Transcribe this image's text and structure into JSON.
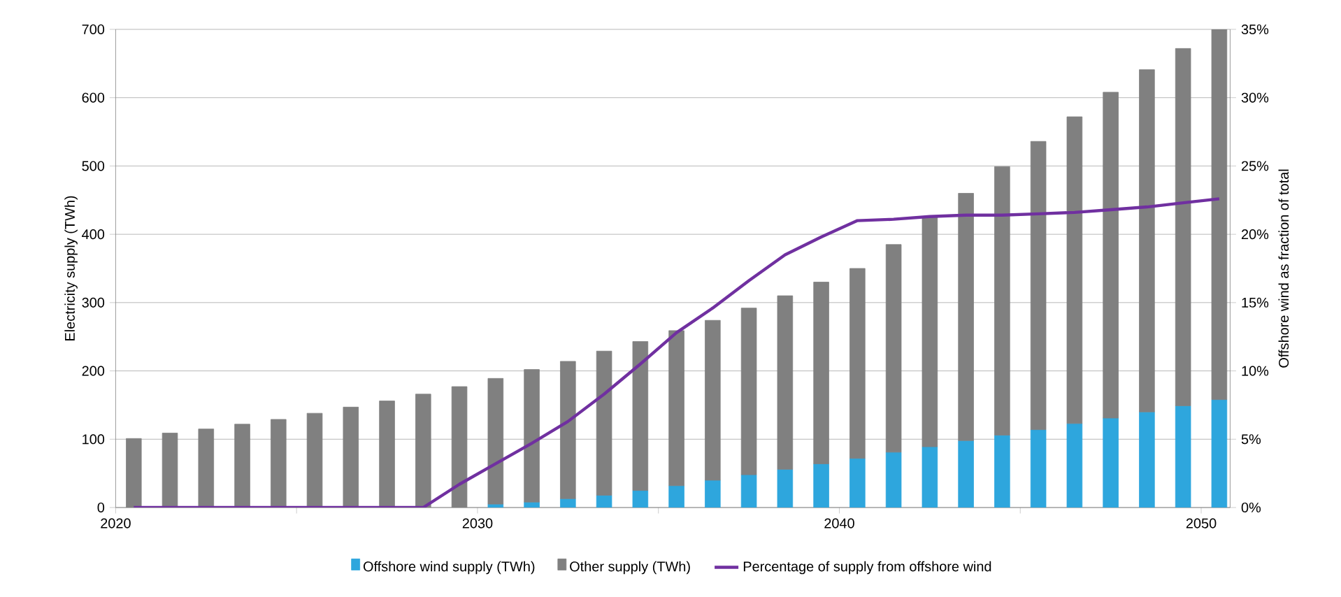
{
  "chart_data": {
    "type": "bar",
    "stacked": true,
    "x": [
      2020.5,
      2021.5,
      2022.5,
      2023.5,
      2024.5,
      2025.5,
      2026.5,
      2027.5,
      2028.5,
      2029.5,
      2030.5,
      2031.5,
      2032.5,
      2033.5,
      2034.5,
      2035.5,
      2036.5,
      2037.5,
      2038.5,
      2039.5,
      2040.5,
      2041.5,
      2042.5,
      2043.5,
      2044.5,
      2045.5,
      2046.5,
      2047.5,
      2048.5,
      2049.5,
      2050.5
    ],
    "series": [
      {
        "name": "Offshore wind supply (TWh)",
        "color": "#2ea6dd",
        "values": [
          0,
          0,
          0,
          0,
          0,
          0,
          0,
          0,
          0,
          null,
          5,
          8,
          13,
          18,
          25,
          32,
          40,
          48,
          56,
          64,
          72,
          81,
          89,
          98,
          106,
          114,
          123,
          131,
          140,
          149,
          158
        ]
      },
      {
        "name": "Other supply (TWh)",
        "color": "#808080",
        "values": [
          101,
          109,
          115,
          122,
          129,
          138,
          147,
          156,
          166,
          177,
          184,
          194,
          201,
          211,
          218,
          227,
          234,
          244,
          254,
          266,
          278,
          304,
          337,
          362,
          393,
          422,
          449,
          477,
          501,
          523,
          542
        ]
      },
      {
        "name": "Percentage of supply from offshore wind",
        "type": "line",
        "axis": "y2",
        "color": "#7030a0",
        "values": [
          0,
          0,
          0,
          0,
          0,
          0,
          0,
          0,
          0,
          1.7,
          3.2,
          4.7,
          6.3,
          8.3,
          10.5,
          12.8,
          14.6,
          16.6,
          18.5,
          19.8,
          21.0,
          21.1,
          21.3,
          21.4,
          21.4,
          21.5,
          21.6,
          21.8,
          22.0,
          22.3,
          22.6
        ]
      }
    ],
    "xlim": [
      2020,
      2050.8
    ],
    "xticks": [
      2020,
      {
        "value": 2025,
        "label": null
      },
      2030,
      {
        "value": 2035,
        "label": null
      },
      2040,
      {
        "value": 2045,
        "label": null
      },
      2050
    ],
    "ylim": [
      0,
      700
    ],
    "yticks": [
      0,
      100,
      200,
      300,
      400,
      500,
      600,
      700
    ],
    "y2lim": [
      0,
      35
    ],
    "y2ticks": [
      {
        "value": 0,
        "label": "0%"
      },
      {
        "value": 5,
        "label": "5%"
      },
      {
        "value": 10,
        "label": "10%"
      },
      {
        "value": 15,
        "label": "15%"
      },
      {
        "value": 20,
        "label": "20%"
      },
      {
        "value": 25,
        "label": "25%"
      },
      {
        "value": 30,
        "label": "30%"
      },
      {
        "value": 35,
        "label": "35%"
      }
    ],
    "ylabel": "Electricity supply (TWh)",
    "y2label": "Offshore wind as fraction of total",
    "grid": "y",
    "legend": "bottom",
    "marker": "none",
    "line_style": "solid"
  }
}
